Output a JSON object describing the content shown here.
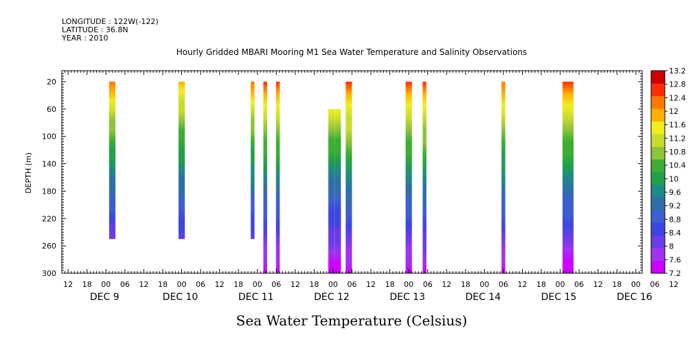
{
  "header": {
    "longitude": "LONGITUDE : 122W(-122)",
    "latitude": "LATITUDE : 36.8N",
    "year": "YEAR : 2010"
  },
  "chart_data": {
    "type": "heatmap",
    "title": "Hourly Gridded MBARI Mooring M1 Sea Water Temperature and Salinity Observations",
    "xlabel": "Sea Water Temperature (Celsius)",
    "ylabel": "DEPTH (m)",
    "x_unit": "hours since DEC 9 00:00",
    "xlim": [
      -14,
      170
    ],
    "ylim": [
      300,
      4
    ],
    "y_ticks": [
      20,
      60,
      100,
      140,
      180,
      220,
      260,
      300
    ],
    "x_hour_ticks": [
      "12",
      "18",
      "00",
      "06",
      "12",
      "18",
      "00",
      "06",
      "12",
      "18",
      "00",
      "06",
      "12",
      "18",
      "00",
      "06",
      "12",
      "18",
      "00",
      "06",
      "12",
      "18",
      "00",
      "06",
      "12",
      "18",
      "00",
      "06",
      "12",
      "18",
      "00",
      "06",
      "12"
    ],
    "x_hour_tick_start": -12,
    "x_hour_tick_step": 6,
    "date_labels": [
      {
        "label": "DEC  9",
        "hour": 0
      },
      {
        "label": "DEC 10",
        "hour": 24
      },
      {
        "label": "DEC 11",
        "hour": 48
      },
      {
        "label": "DEC 12",
        "hour": 72
      },
      {
        "label": "DEC 13",
        "hour": 96
      },
      {
        "label": "DEC 14",
        "hour": 120
      },
      {
        "label": "DEC 15",
        "hour": 144
      },
      {
        "label": "DEC 16",
        "hour": 168
      }
    ],
    "colorbar": {
      "levels": [
        7.2,
        7.6,
        8,
        8.4,
        8.8,
        9.2,
        9.6,
        10,
        10.4,
        10.8,
        11.2,
        11.6,
        12,
        12.4,
        12.8,
        13.2
      ],
      "colors": [
        "#cc00ff",
        "#a033f0",
        "#6a3de8",
        "#3d46e0",
        "#3c5fd0",
        "#2f6fa8",
        "#1e8a88",
        "#22a04a",
        "#3cae34",
        "#8cc43a",
        "#c8dc2e",
        "#f0ee20",
        "#ffb000",
        "#ff7a00",
        "#ff2e00",
        "#cc0000"
      ]
    },
    "profiles": [
      {
        "hour": 2,
        "top": 20,
        "bottom": 250,
        "t_top": 12.5,
        "t_bottom": 8.1
      },
      {
        "hour": 24,
        "top": 20,
        "bottom": 250,
        "t_top": 12.3,
        "t_bottom": 8.2
      },
      {
        "hour": 46.5,
        "top": 20,
        "bottom": 250,
        "t_top": 12.4,
        "t_bottom": 8.3
      },
      {
        "hour": 50.5,
        "top": 20,
        "bottom": 300,
        "t_top": 12.8,
        "t_bottom": 7.4
      },
      {
        "hour": 54.5,
        "top": 20,
        "bottom": 300,
        "t_top": 12.8,
        "t_bottom": 7.4
      },
      {
        "hour": 71.5,
        "top": 60,
        "bottom": 300,
        "t_top": 11.8,
        "t_bottom": 7.3
      },
      {
        "hour": 73.5,
        "top": 60,
        "bottom": 300,
        "t_top": 11.8,
        "t_bottom": 7.3
      },
      {
        "hour": 77,
        "top": 20,
        "bottom": 300,
        "t_top": 12.9,
        "t_bottom": 7.4
      },
      {
        "hour": 96,
        "top": 20,
        "bottom": 300,
        "t_top": 12.8,
        "t_bottom": 7.4
      },
      {
        "hour": 101,
        "top": 20,
        "bottom": 300,
        "t_top": 12.8,
        "t_bottom": 7.5
      },
      {
        "hour": 126,
        "top": 20,
        "bottom": 300,
        "t_top": 12.6,
        "t_bottom": 7.4
      },
      {
        "hour": 146.5,
        "top": 20,
        "bottom": 300,
        "t_top": 12.8,
        "t_bottom": 7.3
      }
    ],
    "profile_widths_hours": [
      2,
      2,
      1.2,
      1.2,
      1.2,
      2,
      2,
      2,
      2,
      1.2,
      1.2,
      3.5
    ],
    "grid": false,
    "legend": "colorbar-right"
  }
}
